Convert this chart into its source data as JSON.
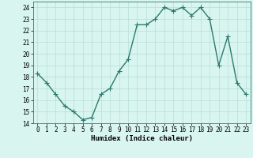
{
  "x": [
    0,
    1,
    2,
    3,
    4,
    5,
    6,
    7,
    8,
    9,
    10,
    11,
    12,
    13,
    14,
    15,
    16,
    17,
    18,
    19,
    20,
    21,
    22,
    23
  ],
  "y": [
    18.3,
    17.5,
    16.5,
    15.5,
    15.0,
    14.3,
    14.5,
    16.5,
    17.0,
    18.5,
    19.5,
    22.5,
    22.5,
    23.0,
    24.0,
    23.7,
    24.0,
    23.3,
    24.0,
    23.0,
    19.0,
    21.5,
    17.5,
    16.5
  ],
  "xlabel": "Humidex (Indice chaleur)",
  "ylim": [
    14,
    24.5
  ],
  "yticks": [
    14,
    15,
    16,
    17,
    18,
    19,
    20,
    21,
    22,
    23,
    24
  ],
  "xticks": [
    0,
    1,
    2,
    3,
    4,
    5,
    6,
    7,
    8,
    9,
    10,
    11,
    12,
    13,
    14,
    15,
    16,
    17,
    18,
    19,
    20,
    21,
    22,
    23
  ],
  "line_color": "#2d7a6e",
  "bg_color": "#d8f5f0",
  "grid_color": "#b8ddd8",
  "marker": "+",
  "marker_size": 4,
  "line_width": 1.0
}
